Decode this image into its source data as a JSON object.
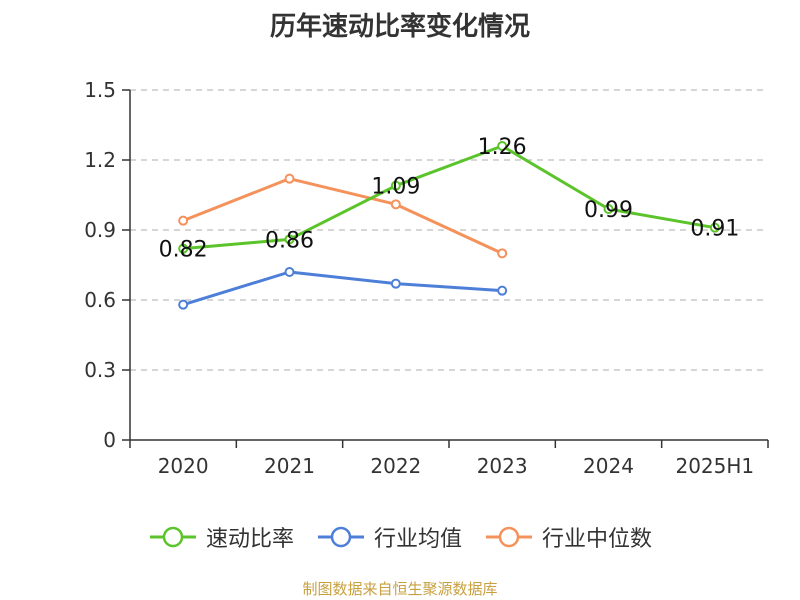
{
  "chart_data": {
    "type": "line",
    "title": "历年速动比率变化情况",
    "categories": [
      "2020",
      "2021",
      "2022",
      "2023",
      "2024",
      "2025H1"
    ],
    "ylim": [
      0,
      1.5
    ],
    "yticks": [
      "0",
      "0.3",
      "0.6",
      "0.9",
      "1.2",
      "1.5"
    ],
    "ytick_values": [
      0,
      0.3,
      0.6,
      0.9,
      1.2,
      1.5
    ],
    "grid": true,
    "legend_position": "bottom",
    "series": [
      {
        "name": "速动比率",
        "color": "#5bc42a",
        "values": [
          0.82,
          0.86,
          1.09,
          1.26,
          0.99,
          0.91
        ],
        "labels": [
          "0.82",
          "0.86",
          "1.09",
          "1.26",
          "0.99",
          "0.91"
        ]
      },
      {
        "name": "行业均值",
        "color": "#4e7fd8",
        "values": [
          0.58,
          0.72,
          0.67,
          0.64,
          null,
          null
        ]
      },
      {
        "name": "行业中位数",
        "color": "#f5915a",
        "values": [
          0.94,
          1.12,
          1.01,
          0.8,
          null,
          null
        ]
      }
    ]
  },
  "source_note": "制图数据来自恒生聚源数据库"
}
